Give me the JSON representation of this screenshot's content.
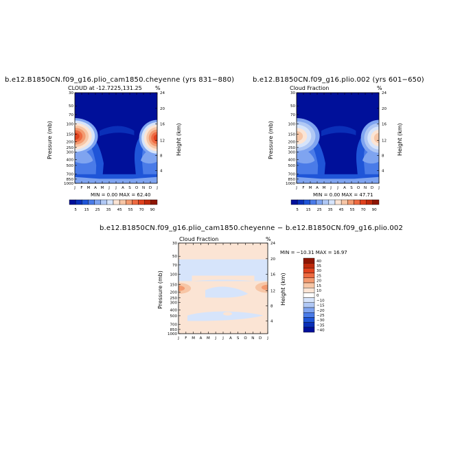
{
  "colors": {
    "bg": "#ffffff",
    "blues": [
      "#00109a",
      "#0a2fb8",
      "#1f55d8",
      "#4a7be8",
      "#7fa4f0",
      "#b0c8f5",
      "#d6e4fb"
    ],
    "reds": [
      "#fbe4d4",
      "#f7c6a6",
      "#f39a70",
      "#ee6b42",
      "#e0421e",
      "#bf2a0c",
      "#8e1502"
    ]
  },
  "panels": [
    {
      "id": "p1",
      "title": "b.e12.B1850CN.f09_g16.plio_cam1850.cheyenne (yrs 831−880)",
      "subtitle": "CLOUD at -12.7225,131.25",
      "percent": "%",
      "ylabel": "Pressure (mb)",
      "y2label": "Height (km)",
      "pressure_ticks": [
        "30",
        "50",
        "70",
        "100",
        "150",
        "200",
        "250",
        "300",
        "400",
        "500",
        "700",
        "850",
        "1000"
      ],
      "height_ticks": [
        "24",
        "20",
        "16",
        "12",
        "8",
        "4"
      ],
      "months": [
        "J",
        "F",
        "M",
        "A",
        "M",
        "J",
        "J",
        "A",
        "S",
        "O",
        "N",
        "D",
        "J"
      ],
      "minmax": "MIN =    0.00  MAX =   62.40"
    },
    {
      "id": "p2",
      "title": "b.e12.B1850CN.f09_g16.plio.002 (yrs 601−650)",
      "subtitle": "Cloud Fraction",
      "percent": "%",
      "ylabel": "Pressure (mb)",
      "y2label": "Height (km)",
      "pressure_ticks": [
        "30",
        "50",
        "70",
        "100",
        "150",
        "200",
        "250",
        "300",
        "400",
        "500",
        "700",
        "850",
        "1000"
      ],
      "height_ticks": [
        "24",
        "20",
        "16",
        "12",
        "8",
        "4"
      ],
      "months": [
        "J",
        "F",
        "M",
        "A",
        "M",
        "J",
        "J",
        "A",
        "S",
        "O",
        "N",
        "D",
        "J"
      ],
      "minmax": "MIN =    0.00  MAX =   47.71"
    },
    {
      "id": "p3",
      "title": "b.e12.B1850CN.f09_g16.plio_cam1850.cheyenne − b.e12.B1850CN.f09_g16.plio.002",
      "subtitle": "Cloud Fraction",
      "percent": "%",
      "ylabel": "Pressure (mb)",
      "y2label": "Height (km)",
      "pressure_ticks": [
        "30",
        "50",
        "70",
        "100",
        "150",
        "200",
        "250",
        "300",
        "400",
        "500",
        "700",
        "850",
        "1000"
      ],
      "height_ticks": [
        "24",
        "20",
        "16",
        "12",
        "8",
        "4"
      ],
      "months": [
        "J",
        "F",
        "M",
        "A",
        "M",
        "J",
        "J",
        "A",
        "S",
        "O",
        "N",
        "D",
        "J"
      ],
      "minmax": "MIN = −10.31  MAX =   16.97"
    }
  ],
  "colorbar_top": [
    "5",
    "15",
    "25",
    "35",
    "45",
    "55",
    "70",
    "90"
  ],
  "colorbar_diff": [
    "40",
    "35",
    "30",
    "25",
    "20",
    "15",
    "10",
    "0",
    "−10",
    "−15",
    "−20",
    "−25",
    "−30",
    "−35",
    "−40"
  ],
  "chart_data": [
    {
      "type": "heatmap",
      "title": "b.e12.B1850CN.f09_g16.plio_cam1850.cheyenne (yrs 831−880)",
      "subtitle": "CLOUD at -12.7225,131.25",
      "xlabel": "Month",
      "ylabel": "Pressure (mb)",
      "y2label": "Height (km)",
      "x": [
        "J",
        "F",
        "M",
        "A",
        "M",
        "J",
        "J",
        "A",
        "S",
        "O",
        "N",
        "D",
        "J"
      ],
      "y": [
        30,
        50,
        70,
        100,
        150,
        200,
        250,
        300,
        400,
        500,
        700,
        850,
        1000
      ],
      "ylim": [
        1000,
        30
      ],
      "min": 0.0,
      "max": 62.4,
      "contour_levels": [
        5,
        10,
        15,
        20,
        25,
        30,
        35,
        40,
        45,
        50,
        55,
        60,
        70,
        80,
        90
      ],
      "units": "%"
    },
    {
      "type": "heatmap",
      "title": "b.e12.B1850CN.f09_g16.plio.002 (yrs 601−650)",
      "subtitle": "Cloud Fraction",
      "xlabel": "Month",
      "ylabel": "Pressure (mb)",
      "y2label": "Height (km)",
      "x": [
        "J",
        "F",
        "M",
        "A",
        "M",
        "J",
        "J",
        "A",
        "S",
        "O",
        "N",
        "D",
        "J"
      ],
      "y": [
        30,
        50,
        70,
        100,
        150,
        200,
        250,
        300,
        400,
        500,
        700,
        850,
        1000
      ],
      "ylim": [
        1000,
        30
      ],
      "min": 0.0,
      "max": 47.71,
      "contour_levels": [
        5,
        10,
        15,
        20,
        25,
        30,
        35,
        40,
        45,
        50,
        55,
        60,
        70,
        80,
        90
      ],
      "units": "%"
    },
    {
      "type": "heatmap",
      "title": "b.e12.B1850CN.f09_g16.plio_cam1850.cheyenne − b.e12.B1850CN.f09_g16.plio.002",
      "subtitle": "Cloud Fraction",
      "xlabel": "Month",
      "ylabel": "Pressure (mb)",
      "y2label": "Height (km)",
      "x": [
        "J",
        "F",
        "M",
        "A",
        "M",
        "J",
        "J",
        "A",
        "S",
        "O",
        "N",
        "D",
        "J"
      ],
      "y": [
        30,
        50,
        70,
        100,
        150,
        200,
        250,
        300,
        400,
        500,
        700,
        850,
        1000
      ],
      "ylim": [
        1000,
        30
      ],
      "min": -10.31,
      "max": 16.97,
      "contour_levels": [
        -40,
        -35,
        -30,
        -25,
        -20,
        -15,
        -10,
        0,
        10,
        15,
        20,
        25,
        30,
        35,
        40
      ],
      "units": "%"
    }
  ]
}
